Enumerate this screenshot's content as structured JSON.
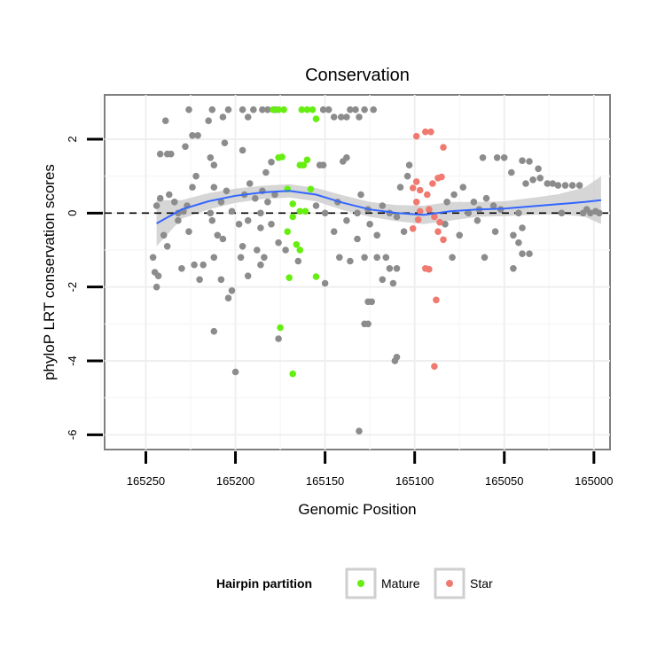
{
  "chart_data": {
    "type": "scatter",
    "title": "Conservation",
    "xlabel": "Genomic Position",
    "ylabel": "phyloP LRT conservation scores",
    "x_reversed": true,
    "xlim": [
      165273,
      164991
    ],
    "ylim": [
      -6.4,
      3.2
    ],
    "x_ticks": [
      165250,
      165200,
      165150,
      165100,
      165050,
      165000
    ],
    "y_ticks": [
      -6,
      -4,
      -2,
      0,
      2
    ],
    "grid": true,
    "reference_line": {
      "y": 0,
      "style": "dashed",
      "color": "#000000"
    },
    "legend": {
      "title": "Hairpin partition",
      "position": "bottom",
      "entries": [
        {
          "label": "Mature",
          "color": "#66ee11"
        },
        {
          "label": "Star",
          "color": "#f07a70"
        }
      ]
    },
    "colors": {
      "other": "#8c8c8c",
      "mature": "#66ee11",
      "star": "#f07a70",
      "smooth": "#3366ff",
      "band": "#cccccc"
    },
    "smooth": {
      "x": [
        165244,
        165230,
        165215,
        165200,
        165185,
        165170,
        165155,
        165140,
        165125,
        165110,
        165095,
        165080,
        165065,
        165050,
        165035,
        165020,
        165005,
        164996
      ],
      "y": [
        -0.28,
        0.1,
        0.32,
        0.47,
        0.56,
        0.6,
        0.5,
        0.28,
        0.1,
        0.0,
        -0.05,
        0.05,
        0.1,
        0.12,
        0.18,
        0.24,
        0.3,
        0.35
      ],
      "lower": [
        -0.9,
        -0.15,
        0.1,
        0.28,
        0.38,
        0.42,
        0.32,
        0.08,
        -0.1,
        -0.22,
        -0.3,
        -0.2,
        -0.1,
        -0.08,
        -0.05,
        -0.03,
        -0.1,
        -0.3
      ],
      "upper": [
        0.35,
        0.35,
        0.54,
        0.66,
        0.74,
        0.78,
        0.68,
        0.48,
        0.3,
        0.22,
        0.2,
        0.3,
        0.3,
        0.32,
        0.41,
        0.51,
        0.7,
        1.0
      ]
    },
    "series": [
      {
        "name": "Mature",
        "points": [
          [
            165179,
            2.8
          ],
          [
            165176,
            2.8
          ],
          [
            165173,
            2.8
          ],
          [
            165163,
            2.8
          ],
          [
            165160,
            2.8
          ],
          [
            165157,
            2.8
          ],
          [
            165155,
            2.55
          ],
          [
            165176,
            1.5
          ],
          [
            165174,
            1.52
          ],
          [
            165164,
            1.3
          ],
          [
            165162,
            1.3
          ],
          [
            165160,
            1.44
          ],
          [
            165171,
            0.65
          ],
          [
            165158,
            0.65
          ],
          [
            165168,
            0.25
          ],
          [
            165164,
            0.05
          ],
          [
            165161,
            0.05
          ],
          [
            165171,
            -0.5
          ],
          [
            165168,
            -0.1
          ],
          [
            165166,
            -0.85
          ],
          [
            165164,
            -1.0
          ],
          [
            165170,
            -1.75
          ],
          [
            165155,
            -1.72
          ],
          [
            165175,
            -3.1
          ],
          [
            165168,
            -4.35
          ]
        ]
      },
      {
        "name": "Star",
        "points": [
          [
            165099,
            2.08
          ],
          [
            165094,
            2.2
          ],
          [
            165091,
            2.2
          ],
          [
            165084,
            1.78
          ],
          [
            165099,
            0.85
          ],
          [
            165097,
            0.62
          ],
          [
            165101,
            0.68
          ],
          [
            165093,
            0.5
          ],
          [
            165087,
            0.95
          ],
          [
            165085,
            0.98
          ],
          [
            165090,
            0.8
          ],
          [
            165099,
            0.3
          ],
          [
            165097,
            0.05
          ],
          [
            165092,
            0.1
          ],
          [
            165089,
            -0.1
          ],
          [
            165087,
            -0.5
          ],
          [
            165086,
            -0.25
          ],
          [
            165084,
            -0.72
          ],
          [
            165101,
            -0.42
          ],
          [
            165098,
            -0.18
          ],
          [
            165094,
            -1.5
          ],
          [
            165092,
            -1.52
          ],
          [
            165088,
            -2.35
          ],
          [
            165089,
            -4.15
          ]
        ]
      },
      {
        "name": "Other",
        "points": [
          [
            165239,
            2.5
          ],
          [
            165226,
            2.8
          ],
          [
            165215,
            2.5
          ],
          [
            165213,
            2.8
          ],
          [
            165207,
            2.6
          ],
          [
            165204,
            2.8
          ],
          [
            165196,
            2.8
          ],
          [
            165193,
            2.6
          ],
          [
            165190,
            2.8
          ],
          [
            165185,
            2.8
          ],
          [
            165182,
            2.8
          ],
          [
            165178,
            2.8
          ],
          [
            165176,
            2.8
          ],
          [
            165151,
            2.8
          ],
          [
            165148,
            2.8
          ],
          [
            165145,
            2.6
          ],
          [
            165141,
            2.6
          ],
          [
            165138,
            2.6
          ],
          [
            165133,
            2.8
          ],
          [
            165128,
            2.8
          ],
          [
            165123,
            2.8
          ],
          [
            165131,
            2.6
          ],
          [
            165136,
            2.8
          ],
          [
            165242,
            1.6
          ],
          [
            165238,
            1.6
          ],
          [
            165236,
            1.6
          ],
          [
            165228,
            1.8
          ],
          [
            165224,
            2.1
          ],
          [
            165221,
            2.1
          ],
          [
            165214,
            1.5
          ],
          [
            165212,
            1.3
          ],
          [
            165206,
            1.9
          ],
          [
            165196,
            1.7
          ],
          [
            165183,
            1.1
          ],
          [
            165180,
            1.38
          ],
          [
            165153,
            1.3
          ],
          [
            165151,
            1.3
          ],
          [
            165140,
            1.4
          ],
          [
            165138,
            1.5
          ],
          [
            165103,
            1.3
          ],
          [
            165062,
            1.5
          ],
          [
            165054,
            1.5
          ],
          [
            165050,
            1.5
          ],
          [
            165040,
            1.42
          ],
          [
            165036,
            1.4
          ],
          [
            165031,
            1.2
          ],
          [
            165046,
            1.1
          ],
          [
            165242,
            0.4
          ],
          [
            165244,
            0.2
          ],
          [
            165237,
            0.5
          ],
          [
            165234,
            0.3
          ],
          [
            165227,
            0.2
          ],
          [
            165224,
            0.7
          ],
          [
            165222,
            1.0
          ],
          [
            165212,
            0.7
          ],
          [
            165208,
            0.3
          ],
          [
            165205,
            0.6
          ],
          [
            165195,
            0.5
          ],
          [
            165192,
            0.8
          ],
          [
            165189,
            0.4
          ],
          [
            165185,
            0.6
          ],
          [
            165182,
            0.3
          ],
          [
            165178,
            0.5
          ],
          [
            165155,
            0.2
          ],
          [
            165143,
            0.3
          ],
          [
            165130,
            0.5
          ],
          [
            165126,
            0.1
          ],
          [
            165118,
            0.2
          ],
          [
            165108,
            0.7
          ],
          [
            165104,
            1.0
          ],
          [
            165082,
            0.3
          ],
          [
            165078,
            0.5
          ],
          [
            165073,
            0.7
          ],
          [
            165067,
            0.3
          ],
          [
            165064,
            0.1
          ],
          [
            165060,
            0.4
          ],
          [
            165056,
            0.2
          ],
          [
            165052,
            0.1
          ],
          [
            165038,
            0.8
          ],
          [
            165034,
            0.9
          ],
          [
            165030,
            0.95
          ],
          [
            165026,
            0.8
          ],
          [
            165023,
            0.8
          ],
          [
            165020,
            0.75
          ],
          [
            165016,
            0.75
          ],
          [
            165012,
            0.75
          ],
          [
            165008,
            0.75
          ],
          [
            165004,
            0.1
          ],
          [
            164999,
            0.05
          ],
          [
            165232,
            0.0
          ],
          [
            165229,
            0.05
          ],
          [
            165214,
            0.0
          ],
          [
            165202,
            0.05
          ],
          [
            165186,
            0.0
          ],
          [
            165150,
            0.0
          ],
          [
            165132,
            0.0
          ],
          [
            165114,
            0.0
          ],
          [
            165070,
            0.0
          ],
          [
            165042,
            0.0
          ],
          [
            165018,
            0.0
          ],
          [
            165006,
            0.0
          ],
          [
            165002,
            0.0
          ],
          [
            164997,
            0.0
          ],
          [
            165240,
            -0.6
          ],
          [
            165238,
            -0.9
          ],
          [
            165232,
            -0.2
          ],
          [
            165226,
            -0.5
          ],
          [
            165218,
            -1.4
          ],
          [
            165213,
            -0.2
          ],
          [
            165210,
            -0.6
          ],
          [
            165207,
            -0.7
          ],
          [
            165198,
            -0.3
          ],
          [
            165196,
            -0.9
          ],
          [
            165193,
            -0.2
          ],
          [
            165188,
            -1.0
          ],
          [
            165186,
            -0.4
          ],
          [
            165180,
            -0.3
          ],
          [
            165176,
            -0.8
          ],
          [
            165172,
            -1.0
          ],
          [
            165145,
            -0.5
          ],
          [
            165138,
            -0.2
          ],
          [
            165132,
            -0.7
          ],
          [
            165125,
            -0.3
          ],
          [
            165121,
            -0.6
          ],
          [
            165110,
            -0.1
          ],
          [
            165106,
            -0.5
          ],
          [
            165083,
            -0.3
          ],
          [
            165075,
            -0.6
          ],
          [
            165065,
            -0.2
          ],
          [
            165055,
            -0.5
          ],
          [
            165045,
            -0.6
          ],
          [
            165042,
            -0.8
          ],
          [
            165040,
            -0.4
          ],
          [
            165036,
            -1.1
          ],
          [
            165246,
            -1.2
          ],
          [
            165245,
            -1.6
          ],
          [
            165243,
            -1.7
          ],
          [
            165244,
            -2.0
          ],
          [
            165230,
            -1.5
          ],
          [
            165223,
            -1.4
          ],
          [
            165220,
            -1.8
          ],
          [
            165212,
            -1.2
          ],
          [
            165208,
            -1.8
          ],
          [
            165204,
            -2.3
          ],
          [
            165202,
            -2.1
          ],
          [
            165197,
            -1.2
          ],
          [
            165193,
            -1.7
          ],
          [
            165186,
            -1.4
          ],
          [
            165184,
            -1.2
          ],
          [
            165165,
            -1.3
          ],
          [
            165150,
            -1.9
          ],
          [
            165142,
            -1.2
          ],
          [
            165136,
            -1.3
          ],
          [
            165128,
            -1.2
          ],
          [
            165126,
            -2.4
          ],
          [
            165124,
            -2.4
          ],
          [
            165121,
            -1.2
          ],
          [
            165118,
            -1.8
          ],
          [
            165116,
            -1.2
          ],
          [
            165114,
            -1.5
          ],
          [
            165112,
            -1.9
          ],
          [
            165110,
            -1.5
          ],
          [
            165079,
            -1.2
          ],
          [
            165061,
            -1.2
          ],
          [
            165045,
            -1.5
          ],
          [
            165040,
            -1.1
          ],
          [
            165212,
            -3.2
          ],
          [
            165200,
            -4.3
          ],
          [
            165176,
            -3.4
          ],
          [
            165128,
            -3.0
          ],
          [
            165126,
            -3.0
          ],
          [
            165111,
            -4.0
          ],
          [
            165110,
            -3.9
          ],
          [
            165131,
            -5.9
          ]
        ]
      }
    ]
  }
}
